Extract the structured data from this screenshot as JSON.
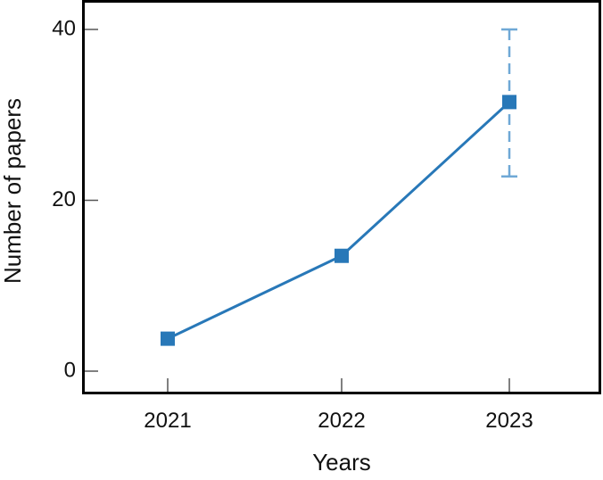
{
  "chart_data": {
    "type": "line",
    "xlabel": "Years",
    "ylabel": "Number of papers",
    "categories": [
      "2021",
      "2022",
      "2023"
    ],
    "series": [
      {
        "values": [
          3.8,
          13.5,
          31.5
        ],
        "color": "#2878b8",
        "marker": "square"
      }
    ],
    "error_bars": [
      {
        "category": "2023",
        "low": 22.8,
        "high": 40,
        "color": "#6fa8d6",
        "style": "dashed"
      }
    ],
    "ylim": [
      0,
      40
    ],
    "yticks": [
      "0",
      "20",
      "40"
    ],
    "grid": false,
    "legend": "none"
  }
}
